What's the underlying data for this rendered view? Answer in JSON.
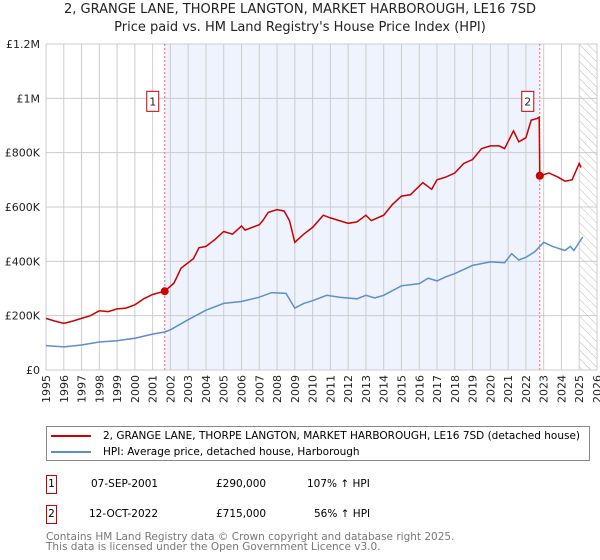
{
  "chart_data": {
    "type": "line",
    "title": "2, GRANGE LANE, THORPE LANGTON, MARKET HARBOROUGH, LE16 7SD",
    "subtitle": "Price paid vs. HM Land Registry's House Price Index (HPI)",
    "xlim": [
      1995,
      2026
    ],
    "ylim": [
      0,
      1200000
    ],
    "yticks": [
      {
        "v": 0,
        "label": "£0"
      },
      {
        "v": 200000,
        "label": "£200K"
      },
      {
        "v": 400000,
        "label": "£400K"
      },
      {
        "v": 600000,
        "label": "£600K"
      },
      {
        "v": 800000,
        "label": "£800K"
      },
      {
        "v": 1000000,
        "label": "£1M"
      },
      {
        "v": 1200000,
        "label": "£1.2M"
      }
    ],
    "xticks": [
      "1995",
      "1996",
      "1997",
      "1998",
      "1999",
      "2000",
      "2001",
      "2002",
      "2003",
      "2004",
      "2005",
      "2006",
      "2007",
      "2008",
      "2009",
      "2010",
      "2011",
      "2012",
      "2013",
      "2014",
      "2015",
      "2016",
      "2017",
      "2018",
      "2019",
      "2020",
      "2021",
      "2022",
      "2023",
      "2024",
      "2025",
      "2026"
    ],
    "grid": true,
    "colors": {
      "property": "#cc0000",
      "hpi": "#5b8fd0",
      "shade": "#eef3fd",
      "marker_line": "#ff6666"
    },
    "series": [
      {
        "name": "2, GRANGE LANE, THORPE LANGTON, MARKET HARBOROUGH, LE16 7SD (detached house)",
        "key": "property",
        "x": [
          1995,
          1995.5,
          1996,
          1996.5,
          1997,
          1997.5,
          1998,
          1998.5,
          1999,
          1999.5,
          2000,
          2000.5,
          2001,
          2001.68,
          2002.2,
          2002.6,
          2003.3,
          2003.6,
          2004,
          2004.5,
          2005,
          2005.5,
          2006,
          2006.2,
          2007,
          2007.2,
          2007.5,
          2008,
          2008.4,
          2008.7,
          2009.0,
          2009.5,
          2010,
          2010.6,
          2011,
          2011.5,
          2012,
          2012.5,
          2013,
          2013.3,
          2014,
          2014.5,
          2015,
          2015.5,
          2016.2,
          2016.7,
          2017,
          2017.5,
          2018,
          2018.5,
          2019,
          2019.5,
          2020,
          2020.5,
          2020.8,
          2021.3,
          2021.6,
          2022.0,
          2022.3,
          2022.6,
          2022.75,
          2022.78,
          2023.3,
          2023.8,
          2024.2,
          2024.6,
          2025.0,
          2025.1
        ],
        "y": [
          190000,
          180000,
          172000,
          180000,
          190000,
          200000,
          218000,
          215000,
          225000,
          228000,
          240000,
          262000,
          278000,
          290000,
          320000,
          375000,
          410000,
          450000,
          455000,
          480000,
          510000,
          500000,
          530000,
          515000,
          535000,
          550000,
          580000,
          590000,
          585000,
          550000,
          470000,
          500000,
          525000,
          570000,
          560000,
          550000,
          540000,
          545000,
          570000,
          550000,
          570000,
          610000,
          640000,
          645000,
          690000,
          665000,
          700000,
          710000,
          725000,
          760000,
          775000,
          815000,
          825000,
          825000,
          815000,
          880000,
          840000,
          855000,
          920000,
          925000,
          930000,
          715000,
          725000,
          710000,
          695000,
          700000,
          760000,
          745000
        ]
      },
      {
        "name": "HPI: Average price, detached house, Harborough",
        "key": "hpi",
        "x": [
          1995,
          1996,
          1997,
          1998,
          1999,
          2000,
          2001,
          2001.68,
          2002,
          2003,
          2004,
          2005,
          2006,
          2007,
          2007.7,
          2008.5,
          2009.0,
          2009.5,
          2010,
          2010.8,
          2011.5,
          2012.5,
          2013,
          2013.5,
          2014,
          2015,
          2016,
          2016.5,
          2017,
          2017.5,
          2018,
          2019,
          2020,
          2020.8,
          2021.2,
          2021.6,
          2022,
          2022.5,
          2023,
          2023.5,
          2024.2,
          2024.5,
          2024.7,
          2025.2
        ],
        "y": [
          90000,
          85000,
          92000,
          103000,
          108000,
          117000,
          132000,
          140000,
          148000,
          185000,
          220000,
          245000,
          252000,
          268000,
          285000,
          282000,
          228000,
          245000,
          255000,
          275000,
          268000,
          262000,
          275000,
          265000,
          275000,
          310000,
          318000,
          338000,
          328000,
          343000,
          355000,
          385000,
          398000,
          395000,
          428000,
          405000,
          415000,
          435000,
          470000,
          455000,
          440000,
          455000,
          440000,
          490000
        ]
      }
    ],
    "sales": [
      {
        "id": "1",
        "x": 2001.68,
        "price": 290000
      },
      {
        "id": "2",
        "x": 2022.78,
        "price": 715000
      }
    ],
    "forecast_from": 2025.0
  },
  "legend": {
    "property": "2, GRANGE LANE, THORPE LANGTON, MARKET HARBOROUGH, LE16 7SD (detached house)",
    "hpi": "HPI: Average price, detached house, Harborough"
  },
  "transactions": [
    {
      "id": "1",
      "date": "07-SEP-2001",
      "price": "£290,000",
      "hpi": "107% ↑ HPI"
    },
    {
      "id": "2",
      "date": "12-OCT-2022",
      "price": "£715,000",
      "hpi": "56% ↑ HPI"
    }
  ],
  "footer": {
    "line1": "Contains HM Land Registry data © Crown copyright and database right 2025.",
    "line2": "This data is licensed under the Open Government Licence v3.0."
  }
}
